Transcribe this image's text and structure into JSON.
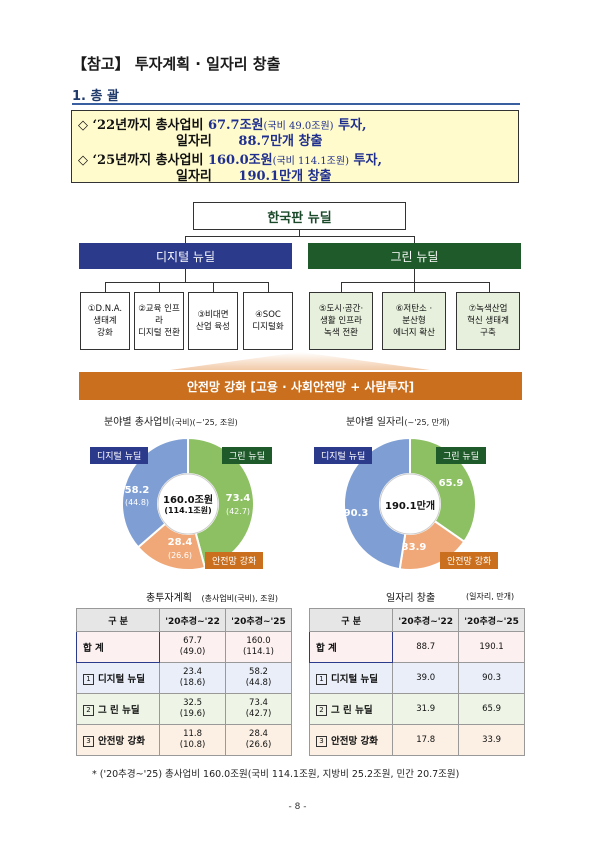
{
  "heading": "【참고】 투자계획 · 일자리 창출",
  "section_title": "1. 총  괄",
  "summary": {
    "row1": {
      "bullet": "◇",
      "period": "‘22년까지",
      "label1": "총사업비",
      "value1": "67.7조원",
      "paren1": "(국비 49.0조원)",
      "tail1": "투자,",
      "label2": "일자리",
      "value2": "88.7만개",
      "tail2": "창출"
    },
    "row2": {
      "bullet": "◇",
      "period": "‘25년까지",
      "label1": "총사업비",
      "value1": "160.0조원",
      "paren1": "(국비 114.1조원)",
      "tail1": "투자,",
      "label2": "일자리",
      "value2": "190.1만개",
      "tail2": "창출"
    }
  },
  "diagram": {
    "top": "한국판 뉴딜",
    "digital_head": "디지털 뉴딜",
    "green_head": "그린 뉴딜",
    "digital_items": [
      [
        "①D.N.A.",
        "생태계",
        "강화"
      ],
      [
        "②교육 인프라",
        "디지털 전환"
      ],
      [
        "③비대면",
        "산업 육성"
      ],
      [
        "④SOC",
        "디지털화"
      ]
    ],
    "green_items": [
      [
        "⑤도시·공간·",
        "생활 인프라",
        "녹색 전환"
      ],
      [
        "⑥저탄소 ·",
        "분산형",
        "에너지 확산"
      ],
      [
        "⑦녹색산업",
        "혁신 생태계",
        "구축"
      ]
    ],
    "safety": "안전망 강화 [고용 · 사회안전망 + 사람투자]"
  },
  "colors": {
    "digital": "#2c3a8c",
    "green": "#1f5a2b",
    "safety": "#c96f1e",
    "donut_digital": "#7f9fd4",
    "donut_green": "#8cc062",
    "donut_safety": "#f0a878"
  },
  "donut1": {
    "title": "분야별 총사업비",
    "title_small": "(국비)(~'25, 조원)",
    "center_main": "160.0조원",
    "center_sub": "(114.1조원)",
    "tag_digital": "디지털 뉴딜",
    "tag_green": "그린 뉴딜",
    "tag_safety": "안전망 강화",
    "digital_value": "58.2",
    "digital_sub": "(44.8)",
    "green_value": "73.4",
    "green_sub": "(42.7)",
    "safety_value": "28.4",
    "safety_sub": "(26.6)"
  },
  "donut2": {
    "title": "분야별 일자리",
    "title_small": "(~'25, 만개)",
    "center_main": "190.1만개",
    "tag_digital": "디지털 뉴딜",
    "tag_green": "그린 뉴딜",
    "tag_safety": "안전망 강화",
    "digital_value": "90.3",
    "green_value": "65.9",
    "safety_value": "33.9"
  },
  "table1": {
    "title": "총투자계획",
    "unit": "(총사업비(국비), 조원)",
    "headers": [
      "구  분",
      "'20추경~'22",
      "'20추경~'25"
    ],
    "rows": [
      {
        "label": "합    계",
        "a": "67.7",
        "a_sub": "(49.0)",
        "b": "160.0",
        "b_sub": "(114.1)"
      },
      {
        "num": "1",
        "label": "디지털 뉴딜",
        "a": "23.4",
        "a_sub": "(18.6)",
        "b": "58.2",
        "b_sub": "(44.8)"
      },
      {
        "num": "2",
        "label": "그  린 뉴딜",
        "a": "32.5",
        "a_sub": "(19.6)",
        "b": "73.4",
        "b_sub": "(42.7)"
      },
      {
        "num": "3",
        "label": "안전망 강화",
        "a": "11.8",
        "a_sub": "(10.8)",
        "b": "28.4",
        "b_sub": "(26.6)"
      }
    ]
  },
  "table2": {
    "title": "일자리 창출",
    "unit": "(일자리, 만개)",
    "headers": [
      "구  분",
      "'20추경~'22",
      "'20추경~'25"
    ],
    "rows": [
      {
        "label": "합    계",
        "a": "88.7",
        "b": "190.1"
      },
      {
        "num": "1",
        "label": "디지털 뉴딜",
        "a": "39.0",
        "b": "90.3"
      },
      {
        "num": "2",
        "label": "그  린 뉴딜",
        "a": "31.9",
        "b": "65.9"
      },
      {
        "num": "3",
        "label": "안전망 강화",
        "a": "17.8",
        "b": "33.9"
      }
    ]
  },
  "footnote": "* ('20추경~'25) 총사업비 160.0조원(국비 114.1조원, 지방비 25.2조원, 민간 20.7조원)",
  "page_number": "- 8 -"
}
